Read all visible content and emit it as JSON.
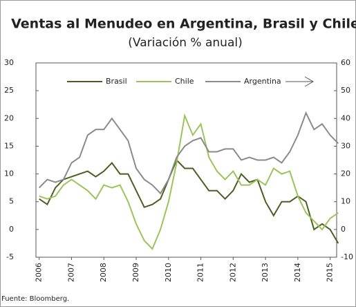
{
  "chart_data": {
    "type": "line",
    "title": "Ventas al Menudeo en Argentina, Brasil y Chile",
    "subtitle": "(Variación % anual)",
    "source": "Fuente: Bloomberg.",
    "x": [
      2006.0,
      2006.25,
      2006.5,
      2006.75,
      2007.0,
      2007.25,
      2007.5,
      2007.75,
      2008.0,
      2008.25,
      2008.5,
      2008.75,
      2009.0,
      2009.25,
      2009.5,
      2009.75,
      2010.0,
      2010.25,
      2010.5,
      2010.75,
      2011.0,
      2011.25,
      2011.5,
      2011.75,
      2012.0,
      2012.25,
      2012.5,
      2012.75,
      2013.0,
      2013.25,
      2013.5,
      2013.75,
      2014.0,
      2014.25,
      2014.5,
      2014.75,
      2015.0,
      2015.25
    ],
    "xlim": [
      2005.9,
      2015.2
    ],
    "xticks": [
      2006,
      2007,
      2008,
      2009,
      2010,
      2011,
      2012,
      2013,
      2014,
      2015
    ],
    "ylim": [
      -5,
      30
    ],
    "yticks": [
      -5,
      0,
      5,
      10,
      15,
      20,
      25,
      30
    ],
    "y2lim": [
      -10,
      60
    ],
    "y2ticks": [
      -10,
      0,
      10,
      20,
      30,
      40,
      50,
      60
    ],
    "series": [
      {
        "name": "Brasil",
        "color": "#4a5e23",
        "values": [
          5.5,
          4.5,
          7.5,
          9,
          9.5,
          10,
          10.5,
          9.5,
          10.5,
          12,
          10,
          10,
          7,
          4,
          4.5,
          5.5,
          9,
          12.5,
          11,
          11,
          9,
          7,
          7,
          5.5,
          7,
          10,
          8.5,
          9,
          5,
          2.5,
          5,
          5,
          6,
          5,
          0,
          1,
          0,
          -2.5
        ]
      },
      {
        "name": "Chile",
        "color": "#9ac45a",
        "values": [
          6,
          5.5,
          6,
          8,
          9,
          8,
          7,
          5.5,
          8,
          7.5,
          8,
          5,
          1,
          -2,
          -3.5,
          0,
          5,
          12,
          20.5,
          17,
          19,
          13,
          10.5,
          9,
          10.5,
          8,
          8,
          9,
          8,
          11,
          10,
          10.5,
          6,
          3,
          1.5,
          0,
          2,
          3
        ]
      },
      {
        "name": "Argentina",
        "color": "#8a8a8a",
        "axis": "y2",
        "values": [
          15,
          18,
          17,
          18,
          24,
          26,
          34,
          36,
          36,
          40,
          36,
          32,
          22,
          18,
          16,
          13,
          18,
          26,
          30,
          32,
          33,
          28,
          28,
          29,
          29,
          25,
          26,
          25,
          25,
          26,
          24,
          28,
          34,
          42,
          36,
          38,
          34,
          31
        ]
      }
    ]
  }
}
